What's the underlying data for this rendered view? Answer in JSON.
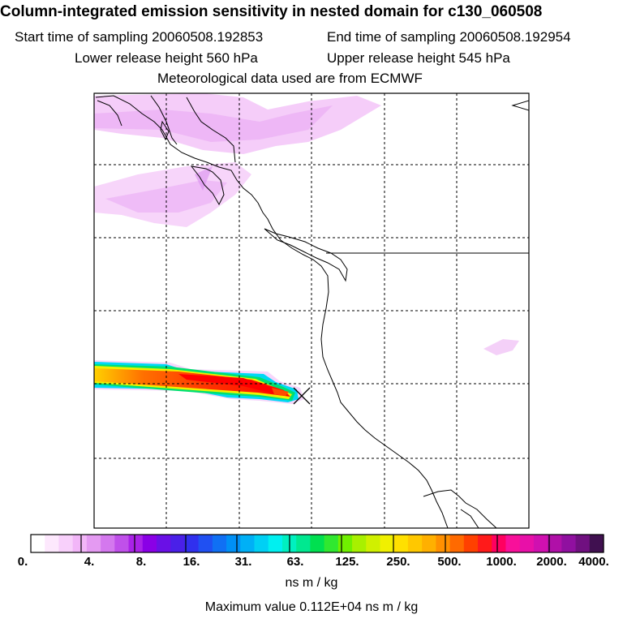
{
  "header": {
    "title": "Column-integrated emission sensitivity in nested domain for c130_060508",
    "start_time": "Start time of sampling 20060508.192853",
    "end_time": "End time of sampling 20060508.192954",
    "lower_release": "Lower release height  560 hPa",
    "upper_release": "Upper release height  545 hPa",
    "met_data": "Meteorological data used are from ECMWF"
  },
  "colorbar": {
    "tick_labels": [
      "0.",
      "4.",
      "8.",
      "16.",
      "31.",
      "63.",
      "125.",
      "250.",
      "500.",
      "1000.",
      "2000.",
      "4000."
    ],
    "colors": [
      "#ffffff",
      "#fde8fd",
      "#f8d0fb",
      "#f2b6f8",
      "#e49af2",
      "#d478ee",
      "#c050ea",
      "#aa22e8",
      "#8a00e6",
      "#6a10e6",
      "#4a20e8",
      "#3030ee",
      "#2050f2",
      "#1070f4",
      "#0090f6",
      "#00b0f6",
      "#00d0f4",
      "#00f0f0",
      "#00f0c0",
      "#00e890",
      "#00e050",
      "#30e830",
      "#70f000",
      "#a8f000",
      "#d0f000",
      "#f0f000",
      "#ffe000",
      "#ffc800",
      "#ffb000",
      "#ff9000",
      "#ff6a00",
      "#ff4000",
      "#ff1a1a",
      "#ff0060",
      "#f8109a",
      "#e810a8",
      "#d010b0",
      "#b010a8",
      "#9010a0",
      "#701080",
      "#401050"
    ],
    "units": "ns m / kg",
    "max_value": "Maximum value  0.112E+04 ns m / kg"
  },
  "map": {
    "release_marker": "release-site-x"
  }
}
